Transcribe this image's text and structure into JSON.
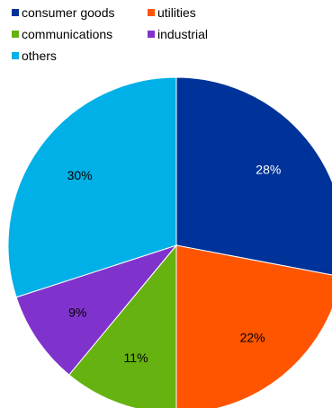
{
  "chart_data": {
    "type": "pie",
    "title": "",
    "legend_position": "top-left",
    "slices": [
      {
        "label": "consumer goods",
        "value": 28,
        "display": "28%",
        "color": "#003399"
      },
      {
        "label": "utilities",
        "value": 22,
        "display": "22%",
        "color": "#ff5500"
      },
      {
        "label": "communications",
        "value": 11,
        "display": "11%",
        "color": "#66b211"
      },
      {
        "label": "industrial",
        "value": 9,
        "display": "9%",
        "color": "#8033cc"
      },
      {
        "label": "others",
        "value": 30,
        "display": "30%",
        "color": "#00b0e6"
      }
    ]
  }
}
